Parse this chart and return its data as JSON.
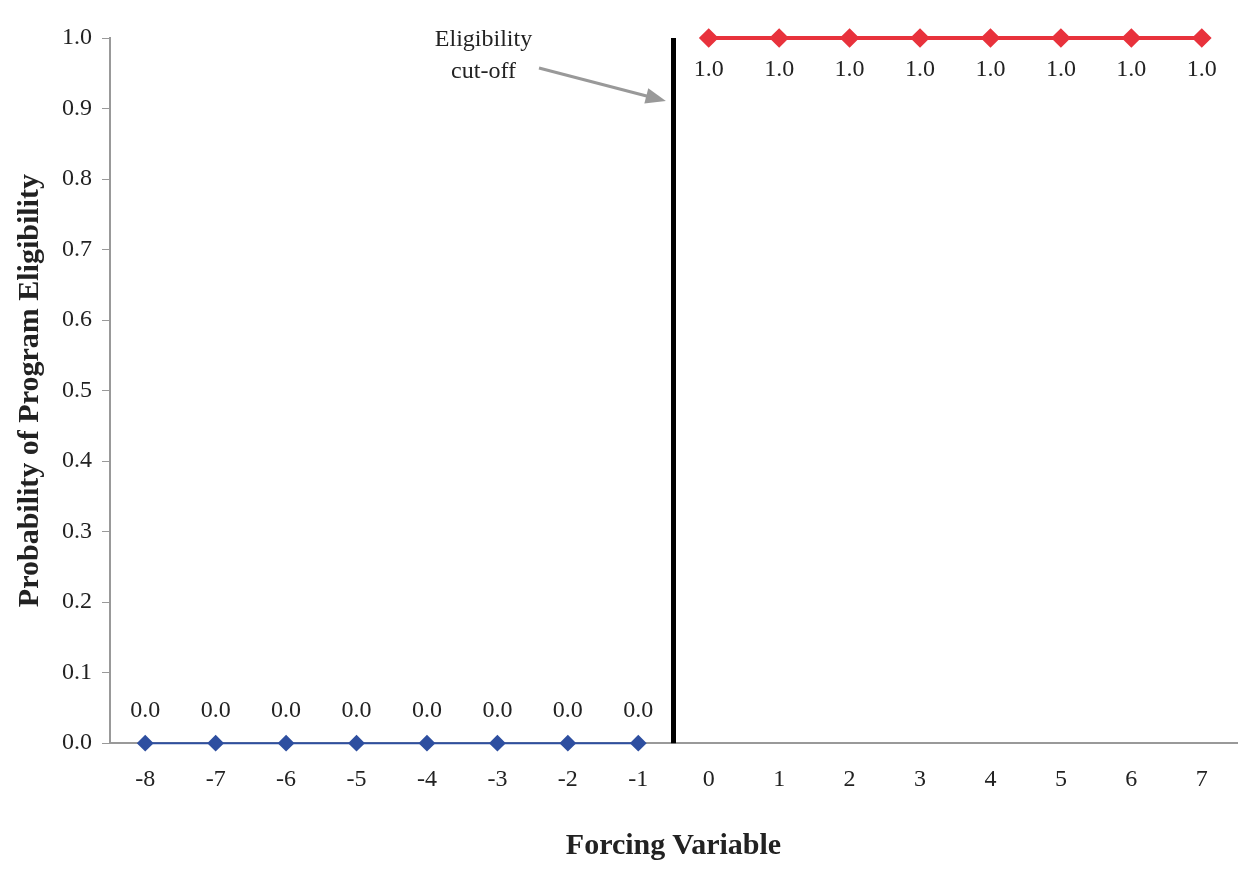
{
  "chart_data": {
    "type": "line",
    "xlabel": "Forcing Variable",
    "ylabel": "Probability of Program Eligibility",
    "x": [
      -8,
      -7,
      -6,
      -5,
      -4,
      -3,
      -2,
      -1,
      0,
      1,
      2,
      3,
      4,
      5,
      6,
      7
    ],
    "series": [
      {
        "color": "#2e4fa0",
        "values": [
          0,
          0,
          0,
          0,
          0,
          0,
          0,
          0,
          null,
          null,
          null,
          null,
          null,
          null,
          null,
          null
        ],
        "value_labels": [
          "0.0",
          "0.0",
          "0.0",
          "0.0",
          "0.0",
          "0.0",
          "0.0",
          "0.0",
          null,
          null,
          null,
          null,
          null,
          null,
          null,
          null
        ]
      },
      {
        "color": "#e8323c",
        "values": [
          null,
          null,
          null,
          null,
          null,
          null,
          null,
          null,
          1,
          1,
          1,
          1,
          1,
          1,
          1,
          1
        ],
        "value_labels": [
          null,
          null,
          null,
          null,
          null,
          null,
          null,
          null,
          "1.0",
          "1.0",
          "1.0",
          "1.0",
          "1.0",
          "1.0",
          "1.0",
          "1.0"
        ]
      }
    ],
    "xlim": [
      -8.5,
      7.5
    ],
    "xticks": [
      -8,
      -7,
      -6,
      -5,
      -4,
      -3,
      -2,
      -1,
      0,
      1,
      2,
      3,
      4,
      5,
      6,
      7
    ],
    "ylim": [
      0,
      1
    ],
    "yticks": [
      {
        "value": 0,
        "label": "0.0"
      },
      {
        "value": 0.1,
        "label": "0.1"
      },
      {
        "value": 0.2,
        "label": "0.2"
      },
      {
        "value": 0.3,
        "label": "0.3"
      },
      {
        "value": 0.4,
        "label": "0.4"
      },
      {
        "value": 0.5,
        "label": "0.5"
      },
      {
        "value": 0.6,
        "label": "0.6"
      },
      {
        "value": 0.7,
        "label": "0.7"
      },
      {
        "value": 0.8,
        "label": "0.8"
      },
      {
        "value": 0.9,
        "label": "0.9"
      },
      {
        "value": 1,
        "label": "1.0"
      }
    ],
    "ref_lines": [
      {
        "axis": "x",
        "value": -0.5,
        "color": "#000000",
        "label": "Eligibility cut-off"
      }
    ],
    "grid": false,
    "legend": false,
    "marker": "diamond",
    "line_style": "solid"
  }
}
